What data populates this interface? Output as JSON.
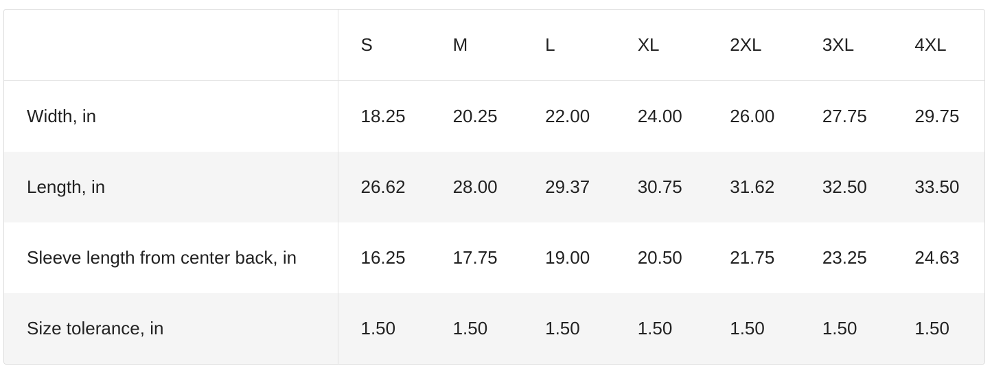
{
  "table": {
    "header": [
      "",
      "S",
      "M",
      "L",
      "XL",
      "2XL",
      "3XL",
      "4XL"
    ],
    "rows": [
      [
        "Width, in",
        "18.25",
        "20.25",
        "22.00",
        "24.00",
        "26.00",
        "27.75",
        "29.75"
      ],
      [
        "Length, in",
        "26.62",
        "28.00",
        "29.37",
        "30.75",
        "31.62",
        "32.50",
        "33.50"
      ],
      [
        "Sleeve length from center back, in",
        "16.25",
        "17.75",
        "19.00",
        "20.50",
        "21.75",
        "23.25",
        "24.63"
      ],
      [
        "Size tolerance, in",
        "1.50",
        "1.50",
        "1.50",
        "1.50",
        "1.50",
        "1.50",
        "1.50"
      ]
    ]
  }
}
